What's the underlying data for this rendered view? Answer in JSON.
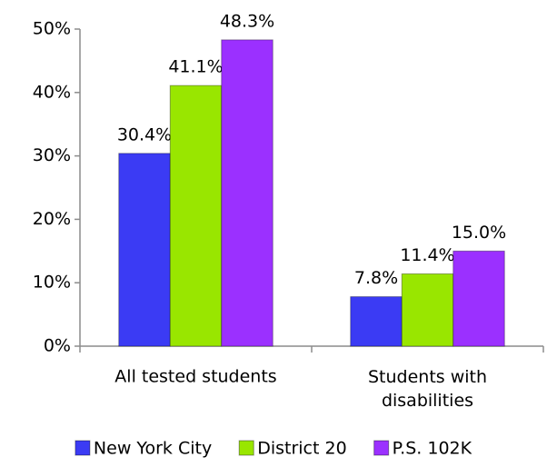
{
  "chart_data": {
    "type": "bar",
    "categories": [
      "All tested students",
      "Students with disabilities"
    ],
    "series": [
      {
        "name": "New York City",
        "color": "#3b3bf4",
        "values": [
          30.4,
          7.8
        ],
        "value_labels": [
          "30.4%",
          "7.8%"
        ]
      },
      {
        "name": "District 20",
        "color": "#99e600",
        "values": [
          41.1,
          11.4
        ],
        "value_labels": [
          "41.1%",
          "11.4%"
        ]
      },
      {
        "name": "P.S. 102K",
        "color": "#9b30ff",
        "values": [
          48.3,
          15.0
        ],
        "value_labels": [
          "48.3%",
          "15.0%"
        ]
      }
    ],
    "ylim": [
      0,
      50
    ],
    "yticks": [
      {
        "value": 0,
        "label": "0%"
      },
      {
        "value": 10,
        "label": "10%"
      },
      {
        "value": 20,
        "label": "20%"
      },
      {
        "value": 30,
        "label": "30%"
      },
      {
        "value": 40,
        "label": "40%"
      },
      {
        "value": 50,
        "label": "50%"
      }
    ],
    "grid": false,
    "legend": "bottom"
  }
}
